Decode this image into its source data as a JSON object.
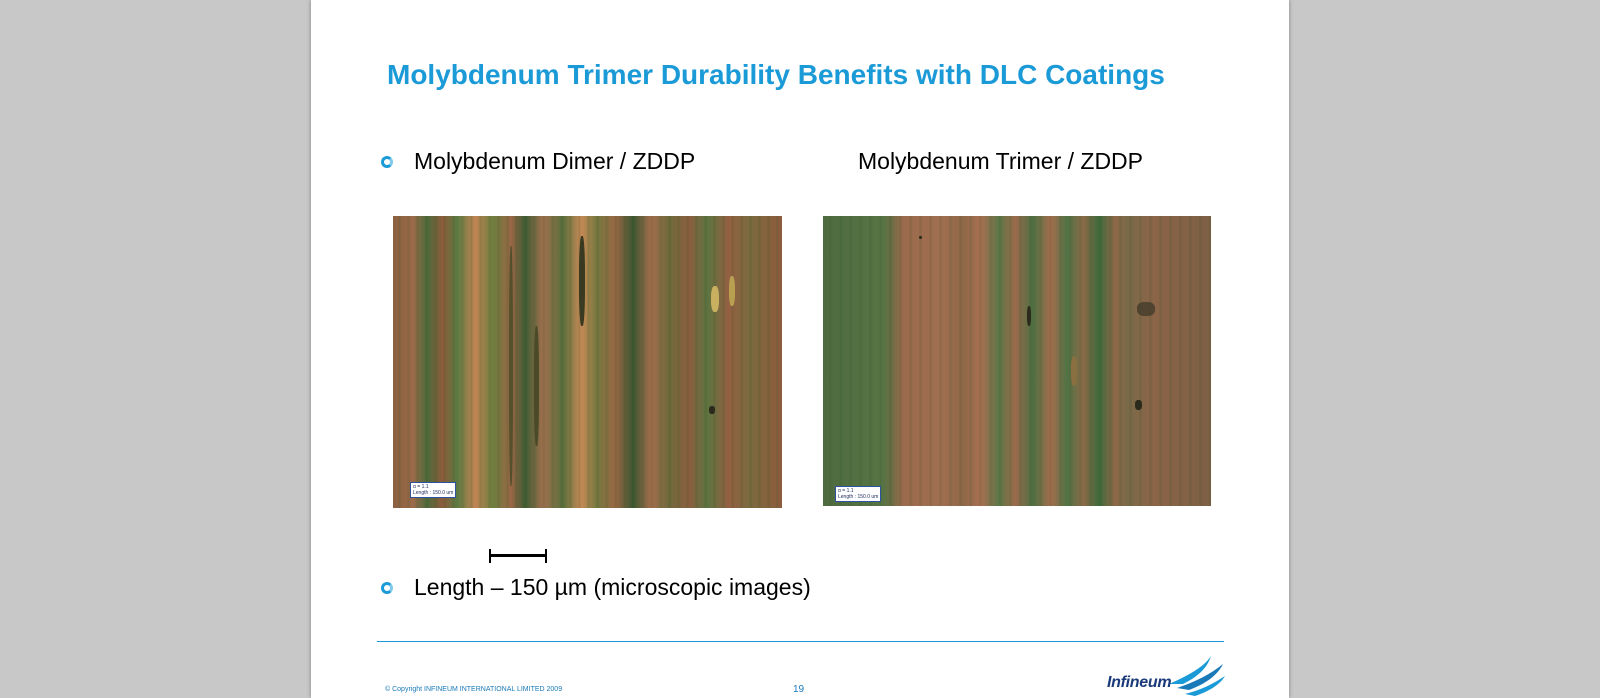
{
  "slide": {
    "title": "Molybdenum Trimer Durability Benefits with DLC Coatings",
    "bullet1": "Molybdenum Dimer / ZDDP",
    "label_right": "Molybdenum Trimer / ZDDP",
    "bullet2": "Length – 150 µm (microscopic images)",
    "micro_left_tag_line1": "α = 1.1",
    "micro_left_tag_line2": "Length : 150.0 um",
    "micro_right_tag_line1": "α = 1.1",
    "micro_right_tag_line2": "Length : 150.0 um"
  },
  "footer": {
    "copyright": "© Copyright INFINEUM INTERNATIONAL LIMITED 2009",
    "page_number": "19",
    "logo_text": "Infineum"
  },
  "colors": {
    "accent": "#1a9ad6",
    "viewer_background": "#c8c8c8"
  },
  "icons": {
    "bullet": "hollow-circle-bullet",
    "logo": "infineum-swirl-logo"
  }
}
